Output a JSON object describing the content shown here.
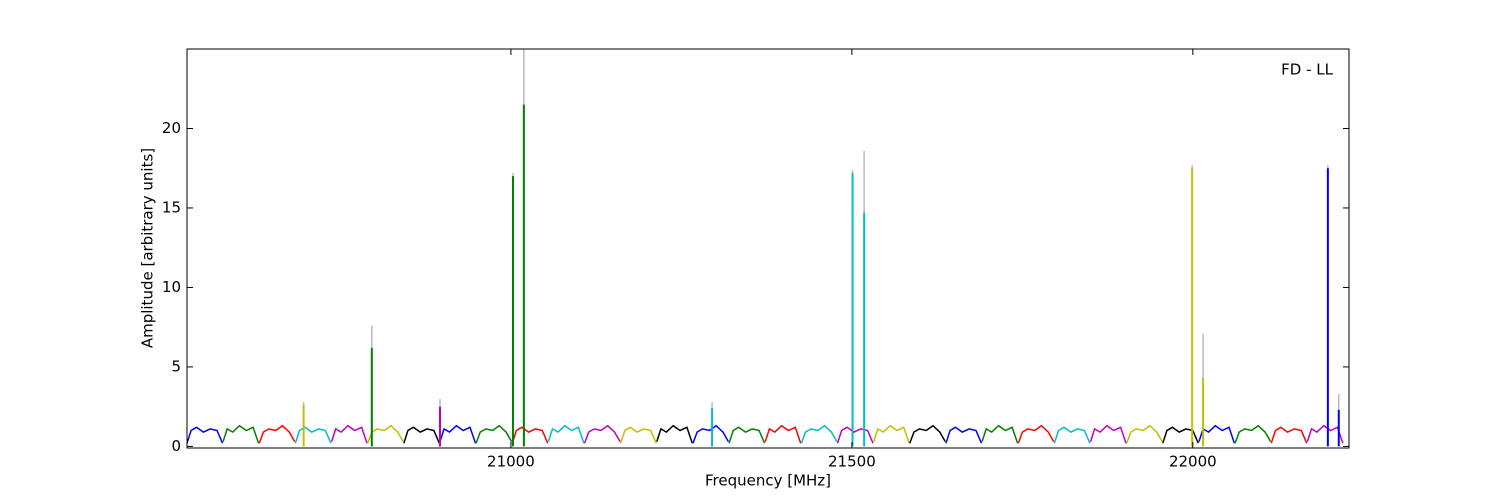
{
  "chart_data": {
    "type": "line",
    "xlabel": "Frequency [MHz]",
    "ylabel": "Amplitude [arbitrary units]",
    "annotation": "FD - LL",
    "xlim": [
      20525,
      22229
    ],
    "ylim": [
      -0.1,
      25
    ],
    "xticks": [
      21000,
      21500,
      22000
    ],
    "yticks": [
      0,
      5,
      10,
      15,
      20
    ],
    "series": [
      {
        "color": "#0000ff",
        "x": [
          20525,
          20531,
          20539,
          20549,
          20559,
          20569,
          20577
        ],
        "values": [
          0.2,
          1.0,
          1.2,
          0.9,
          1.1,
          1.0,
          0.2
        ]
      },
      {
        "color": "#008000",
        "x": [
          20578,
          20584,
          20592,
          20602,
          20612,
          20622,
          20630
        ],
        "values": [
          0.3,
          1.1,
          0.9,
          1.3,
          1.0,
          1.2,
          0.2
        ]
      },
      {
        "color": "#ff0000",
        "x": [
          20631,
          20637,
          20645,
          20655,
          20665,
          20675,
          20683
        ],
        "values": [
          0.2,
          0.9,
          1.1,
          1.0,
          1.3,
          0.9,
          0.3
        ]
      },
      {
        "color": "#00bfbf",
        "x": [
          20684,
          20690,
          20698,
          20708,
          20718,
          20728,
          20736
        ],
        "values": [
          0.2,
          1.0,
          1.2,
          0.9,
          1.1,
          1.0,
          0.2
        ]
      },
      {
        "color": "#bf00bf",
        "x": [
          20737,
          20743,
          20751,
          20761,
          20771,
          20781,
          20789
        ],
        "values": [
          0.3,
          1.1,
          0.9,
          1.3,
          1.0,
          1.2,
          0.2
        ]
      },
      {
        "color": "#bfbf00",
        "x": [
          20790,
          20796,
          20804,
          20814,
          20824,
          20834,
          20842
        ],
        "values": [
          0.2,
          0.9,
          1.1,
          1.0,
          1.3,
          0.9,
          0.3
        ]
      },
      {
        "color": "#000000",
        "x": [
          20843,
          20849,
          20857,
          20867,
          20877,
          20887,
          20895
        ],
        "values": [
          0.2,
          1.0,
          1.2,
          0.9,
          1.1,
          1.0,
          0.2
        ]
      },
      {
        "color": "#0000ff",
        "x": [
          20896,
          20902,
          20910,
          20920,
          20930,
          20940,
          20948
        ],
        "values": [
          0.3,
          1.1,
          0.9,
          1.3,
          1.0,
          1.2,
          0.2
        ]
      },
      {
        "color": "#008000",
        "x": [
          20949,
          20955,
          20963,
          20973,
          20983,
          20993,
          21001
        ],
        "values": [
          0.2,
          0.9,
          1.1,
          1.0,
          1.3,
          0.9,
          0.3
        ]
      },
      {
        "color": "#ff0000",
        "x": [
          21002,
          21008,
          21016,
          21026,
          21036,
          21046,
          21054
        ],
        "values": [
          0.2,
          1.0,
          1.2,
          0.9,
          1.1,
          1.0,
          0.2
        ]
      },
      {
        "color": "#00bfbf",
        "x": [
          21055,
          21061,
          21069,
          21079,
          21089,
          21099,
          21107
        ],
        "values": [
          0.3,
          1.1,
          0.9,
          1.3,
          1.0,
          1.2,
          0.2
        ]
      },
      {
        "color": "#bf00bf",
        "x": [
          21108,
          21114,
          21122,
          21132,
          21142,
          21152,
          21160
        ],
        "values": [
          0.2,
          0.9,
          1.1,
          1.0,
          1.3,
          0.9,
          0.3
        ]
      },
      {
        "color": "#bfbf00",
        "x": [
          21161,
          21167,
          21175,
          21185,
          21195,
          21205,
          21213
        ],
        "values": [
          0.2,
          1.0,
          1.2,
          0.9,
          1.1,
          1.0,
          0.2
        ]
      },
      {
        "color": "#000000",
        "x": [
          21214,
          21220,
          21228,
          21238,
          21248,
          21258,
          21266
        ],
        "values": [
          0.3,
          1.1,
          0.9,
          1.3,
          1.0,
          1.2,
          0.2
        ]
      },
      {
        "color": "#0000ff",
        "x": [
          21267,
          21273,
          21281,
          21291,
          21301,
          21311,
          21319
        ],
        "values": [
          0.2,
          0.9,
          1.1,
          1.0,
          1.3,
          0.9,
          0.3
        ]
      },
      {
        "color": "#008000",
        "x": [
          21320,
          21326,
          21334,
          21344,
          21354,
          21364,
          21372
        ],
        "values": [
          0.2,
          1.0,
          1.2,
          0.9,
          1.1,
          1.0,
          0.2
        ]
      },
      {
        "color": "#ff0000",
        "x": [
          21373,
          21379,
          21387,
          21397,
          21407,
          21417,
          21425
        ],
        "values": [
          0.3,
          1.1,
          0.9,
          1.3,
          1.0,
          1.2,
          0.2
        ]
      },
      {
        "color": "#00bfbf",
        "x": [
          21426,
          21432,
          21440,
          21450,
          21460,
          21470,
          21478
        ],
        "values": [
          0.2,
          0.9,
          1.1,
          1.0,
          1.3,
          0.9,
          0.3
        ]
      },
      {
        "color": "#bf00bf",
        "x": [
          21479,
          21485,
          21493,
          21503,
          21513,
          21523,
          21531
        ],
        "values": [
          0.2,
          1.0,
          1.2,
          0.9,
          1.1,
          1.0,
          0.2
        ]
      },
      {
        "color": "#bfbf00",
        "x": [
          21532,
          21538,
          21546,
          21556,
          21566,
          21576,
          21584
        ],
        "values": [
          0.3,
          1.1,
          0.9,
          1.3,
          1.0,
          1.2,
          0.2
        ]
      },
      {
        "color": "#000000",
        "x": [
          21585,
          21591,
          21599,
          21609,
          21619,
          21629,
          21637
        ],
        "values": [
          0.2,
          0.9,
          1.1,
          1.0,
          1.3,
          0.9,
          0.3
        ]
      },
      {
        "color": "#0000ff",
        "x": [
          21638,
          21644,
          21652,
          21662,
          21672,
          21682,
          21690
        ],
        "values": [
          0.2,
          1.0,
          1.2,
          0.9,
          1.1,
          1.0,
          0.2
        ]
      },
      {
        "color": "#008000",
        "x": [
          21691,
          21697,
          21705,
          21715,
          21725,
          21735,
          21743
        ],
        "values": [
          0.3,
          1.1,
          0.9,
          1.3,
          1.0,
          1.2,
          0.2
        ]
      },
      {
        "color": "#ff0000",
        "x": [
          21744,
          21750,
          21758,
          21768,
          21778,
          21788,
          21796
        ],
        "values": [
          0.2,
          0.9,
          1.1,
          1.0,
          1.3,
          0.9,
          0.3
        ]
      },
      {
        "color": "#00bfbf",
        "x": [
          21797,
          21803,
          21811,
          21821,
          21831,
          21841,
          21849
        ],
        "values": [
          0.2,
          1.0,
          1.2,
          0.9,
          1.1,
          1.0,
          0.2
        ]
      },
      {
        "color": "#bf00bf",
        "x": [
          21850,
          21856,
          21864,
          21874,
          21884,
          21894,
          21902
        ],
        "values": [
          0.3,
          1.1,
          0.9,
          1.3,
          1.0,
          1.2,
          0.2
        ]
      },
      {
        "color": "#bfbf00",
        "x": [
          21903,
          21909,
          21917,
          21927,
          21937,
          21947,
          21955
        ],
        "values": [
          0.2,
          0.9,
          1.1,
          1.0,
          1.3,
          0.9,
          0.3
        ]
      },
      {
        "color": "#000000",
        "x": [
          21956,
          21962,
          21970,
          21980,
          21990,
          22000,
          22008
        ],
        "values": [
          0.2,
          1.0,
          1.2,
          0.9,
          1.1,
          1.0,
          0.2
        ]
      },
      {
        "color": "#0000ff",
        "x": [
          22009,
          22015,
          22023,
          22033,
          22043,
          22053,
          22061
        ],
        "values": [
          0.3,
          1.1,
          0.9,
          1.3,
          1.0,
          1.2,
          0.2
        ]
      },
      {
        "color": "#008000",
        "x": [
          22062,
          22068,
          22076,
          22086,
          22096,
          22106,
          22114
        ],
        "values": [
          0.2,
          0.9,
          1.1,
          1.0,
          1.3,
          0.9,
          0.3
        ]
      },
      {
        "color": "#ff0000",
        "x": [
          22115,
          22121,
          22129,
          22139,
          22149,
          22159,
          22167
        ],
        "values": [
          0.2,
          1.0,
          1.2,
          0.9,
          1.1,
          1.0,
          0.2
        ]
      },
      {
        "color": "#bf00bf",
        "x": [
          22168,
          22174,
          22182,
          22192,
          22202,
          22212,
          22220
        ],
        "values": [
          0.3,
          1.1,
          0.9,
          1.3,
          1.0,
          1.2,
          0.2
        ]
      }
    ],
    "raw_color": "#bbbbbb",
    "raw_spikes": [
      {
        "x": 20696,
        "value": 2.8
      },
      {
        "x": 20796,
        "value": 7.6
      },
      {
        "x": 20896,
        "value": 3.0
      },
      {
        "x": 21003,
        "value": 17.2
      },
      {
        "x": 21019,
        "value": 25
      },
      {
        "x": 21295,
        "value": 2.8
      },
      {
        "x": 21501,
        "value": 17.4
      },
      {
        "x": 21518,
        "value": 18.6
      },
      {
        "x": 21999,
        "value": 17.7
      },
      {
        "x": 22015,
        "value": 7.1
      },
      {
        "x": 22198,
        "value": 17.7
      },
      {
        "x": 22214,
        "value": 3.3
      }
    ],
    "spikes": [
      {
        "x": 20696,
        "value": 2.6,
        "color": "#bfbf00"
      },
      {
        "x": 20796,
        "value": 6.2,
        "color": "#008000"
      },
      {
        "x": 20896,
        "value": 2.5,
        "color": "#bf00bf"
      },
      {
        "x": 21003,
        "value": 17.0,
        "color": "#008000"
      },
      {
        "x": 21019,
        "value": 21.5,
        "color": "#008000"
      },
      {
        "x": 21295,
        "value": 2.4,
        "color": "#00bfbf"
      },
      {
        "x": 21501,
        "value": 17.2,
        "color": "#00bfbf"
      },
      {
        "x": 21518,
        "value": 14.7,
        "color": "#00bfbf"
      },
      {
        "x": 21999,
        "value": 17.5,
        "color": "#bfbf00"
      },
      {
        "x": 22015,
        "value": 4.3,
        "color": "#bfbf00"
      },
      {
        "x": 22198,
        "value": 17.5,
        "color": "#0000ff"
      },
      {
        "x": 22214,
        "value": 2.3,
        "color": "#0000ff"
      }
    ]
  }
}
